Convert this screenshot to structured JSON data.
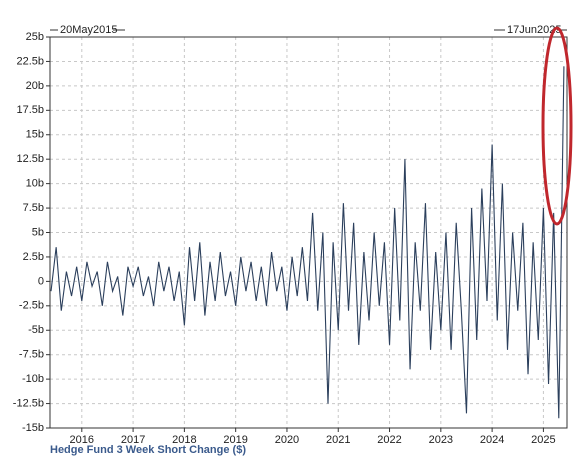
{
  "chart_data": {
    "type": "line",
    "start_label": "20May2015",
    "end_label": "17Jun2025",
    "x_label": "Hedge Fund 3 Week Short Change ($)",
    "color": "#2b3f5c",
    "grid": true,
    "xlim": [
      2015.38,
      2025.46
    ],
    "xticks": [
      2016,
      2017,
      2018,
      2019,
      2020,
      2021,
      2022,
      2023,
      2024,
      2025
    ],
    "ylim": [
      -15,
      25
    ],
    "yticks": [
      {
        "value": -15,
        "label": "-15b"
      },
      {
        "value": -12.5,
        "label": "-12.5b"
      },
      {
        "value": -10,
        "label": "-10b"
      },
      {
        "value": -7.5,
        "label": "-7.5b"
      },
      {
        "value": -5,
        "label": "-5b"
      },
      {
        "value": -2.5,
        "label": "-2.5b"
      },
      {
        "value": 0,
        "label": "0"
      },
      {
        "value": 2.5,
        "label": "2.5b"
      },
      {
        "value": 5,
        "label": "5b"
      },
      {
        "value": 7.5,
        "label": "7.5b"
      },
      {
        "value": 10,
        "label": "10b"
      },
      {
        "value": 12.5,
        "label": "12.5b"
      },
      {
        "value": 15,
        "label": "15b"
      },
      {
        "value": 17.5,
        "label": "17.5b"
      },
      {
        "value": 20,
        "label": "20b"
      },
      {
        "value": 22.5,
        "label": "22.5b"
      },
      {
        "value": 25,
        "label": "25b"
      }
    ],
    "x": [
      2015.4,
      2015.5,
      2015.6,
      2015.7,
      2015.8,
      2015.9,
      2016.0,
      2016.1,
      2016.2,
      2016.3,
      2016.4,
      2016.5,
      2016.6,
      2016.7,
      2016.8,
      2016.9,
      2017.0,
      2017.1,
      2017.2,
      2017.3,
      2017.4,
      2017.5,
      2017.6,
      2017.7,
      2017.8,
      2017.9,
      2018.0,
      2018.1,
      2018.2,
      2018.3,
      2018.4,
      2018.5,
      2018.6,
      2018.7,
      2018.8,
      2018.9,
      2019.0,
      2019.1,
      2019.2,
      2019.3,
      2019.4,
      2019.5,
      2019.6,
      2019.7,
      2019.8,
      2019.9,
      2020.0,
      2020.1,
      2020.2,
      2020.3,
      2020.4,
      2020.5,
      2020.6,
      2020.7,
      2020.8,
      2020.9,
      2021.0,
      2021.1,
      2021.2,
      2021.3,
      2021.4,
      2021.5,
      2021.6,
      2021.7,
      2021.8,
      2021.9,
      2022.0,
      2022.1,
      2022.2,
      2022.3,
      2022.4,
      2022.5,
      2022.6,
      2022.7,
      2022.8,
      2022.9,
      2023.0,
      2023.1,
      2023.2,
      2023.3,
      2023.4,
      2023.5,
      2023.6,
      2023.7,
      2023.8,
      2023.9,
      2024.0,
      2024.1,
      2024.2,
      2024.3,
      2024.4,
      2024.5,
      2024.6,
      2024.7,
      2024.8,
      2024.9,
      2025.0,
      2025.1,
      2025.2,
      2025.3,
      2025.4
    ],
    "values": [
      -1,
      3.5,
      -3,
      1,
      -1.5,
      1.5,
      -2,
      2,
      -0.5,
      1,
      -2.5,
      2,
      -1,
      0.5,
      -3.5,
      1.5,
      -0.5,
      1.5,
      -1.5,
      0.5,
      -2.5,
      2,
      -1,
      1.5,
      -2,
      1,
      -4.5,
      3.5,
      -2,
      4,
      -3.5,
      2,
      -2,
      3,
      -1.5,
      1,
      -2.5,
      2.5,
      -1,
      2,
      -2,
      1.5,
      -2.5,
      3,
      -1,
      1.5,
      -3,
      2.5,
      -1.5,
      3.5,
      -2,
      7,
      -3,
      5,
      -12.5,
      4,
      -5,
      8,
      -3,
      6,
      -6.5,
      3,
      -4,
      5,
      -2.5,
      4,
      -6.5,
      7.5,
      -4,
      12.5,
      -9,
      4,
      -3,
      8,
      -7,
      3,
      -5,
      5,
      -7,
      6,
      -3,
      -13.5,
      7.5,
      -6,
      9.5,
      -2,
      14,
      -4,
      10,
      -7,
      5,
      -3,
      6,
      -9.5,
      4,
      -6,
      7.5,
      -10.5,
      7,
      -14,
      22
    ]
  }
}
